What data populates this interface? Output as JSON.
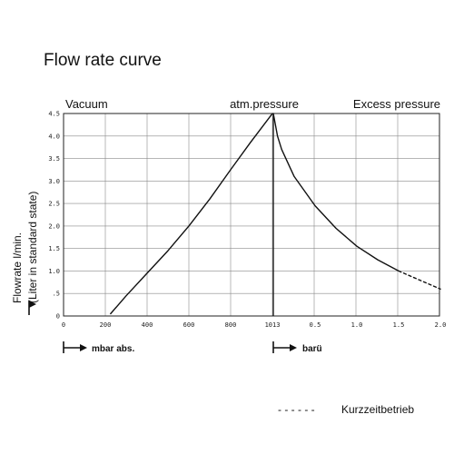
{
  "chart_data": {
    "type": "line",
    "title": "Flow rate curve",
    "region_labels": [
      "Vacuum",
      "atm.pressure",
      "Excess pressure"
    ],
    "ylabel_line1": "Flowrate l/min.",
    "ylabel_line2": "(Liter in standard state)",
    "yticks": [
      "0",
      ".5",
      "1.0",
      "1.5",
      "2.0",
      "2.5",
      "3.0",
      "3.5",
      "4.0",
      "4.5"
    ],
    "ylim": [
      0,
      4.5
    ],
    "xticks_left": [
      "0",
      "200",
      "400",
      "600",
      "800",
      "1013"
    ],
    "xticks_right": [
      "0.5",
      "1.0",
      "1.5",
      "2.0"
    ],
    "xunit_left": "mbar abs.",
    "xunit_right": "barü",
    "grid": true,
    "series": [
      {
        "style": "solid",
        "segment": "vacuum",
        "x": [
          225,
          300,
          400,
          500,
          600,
          700,
          800,
          900,
          1013
        ],
        "y": [
          0.05,
          0.45,
          0.95,
          1.45,
          2.0,
          2.6,
          3.25,
          3.85,
          4.5
        ]
      },
      {
        "style": "solid",
        "segment": "excess pressure",
        "x": [
          0,
          0.05,
          0.1,
          0.25,
          0.5,
          0.75,
          1.0,
          1.25,
          1.5
        ],
        "y": [
          4.5,
          4.0,
          3.7,
          3.1,
          2.45,
          1.95,
          1.55,
          1.25,
          1.0
        ]
      },
      {
        "style": "dashed",
        "segment": "excess pressure",
        "x": [
          1.5,
          1.75,
          2.0
        ],
        "y": [
          1.0,
          0.8,
          0.6
        ]
      }
    ]
  },
  "legend": {
    "dash_symbol": "- - - - - -",
    "label": "Kurzzeitbetrieb"
  }
}
